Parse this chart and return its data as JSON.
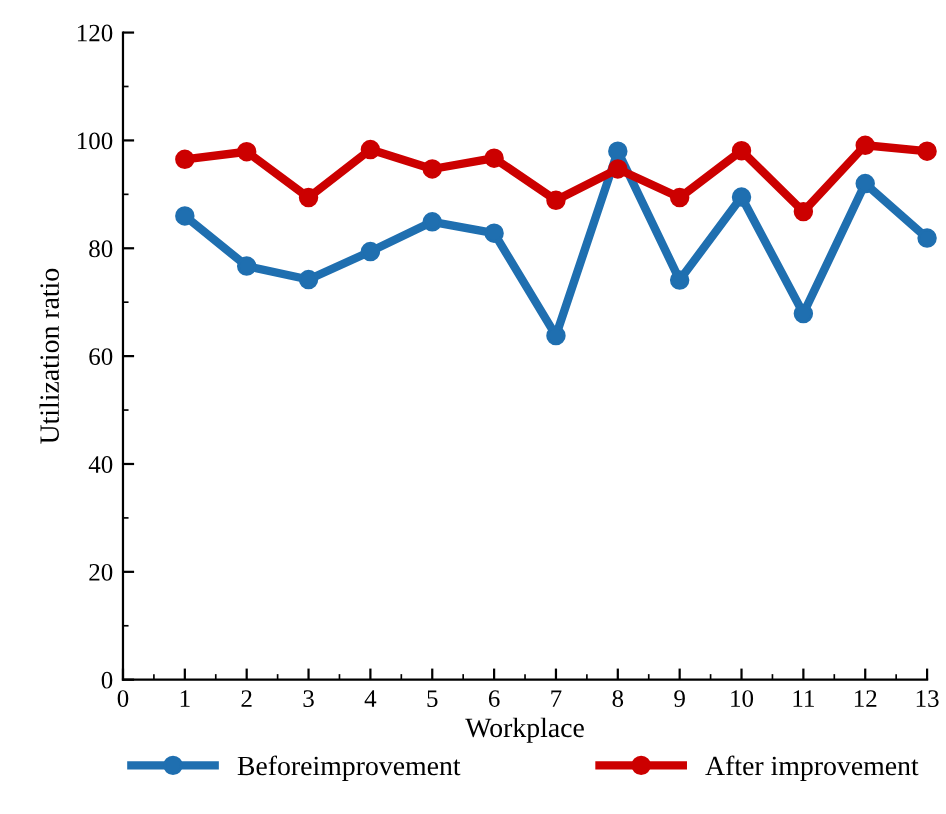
{
  "chart_data": {
    "type": "line",
    "xlabel": "Workplace",
    "ylabel": "Utilization ratio",
    "x": [
      1,
      2,
      3,
      4,
      5,
      6,
      7,
      8,
      9,
      10,
      11,
      12,
      13
    ],
    "series": [
      {
        "name": "Beforeimprovement",
        "color": "#1f6fb0",
        "values": [
          86.0,
          76.7,
          74.2,
          79.4,
          84.9,
          82.8,
          63.8,
          98.0,
          74.1,
          89.5,
          67.9,
          92.0,
          81.9
        ]
      },
      {
        "name": "After improvement",
        "color": "#cc0000",
        "values": [
          96.5,
          97.9,
          89.4,
          98.3,
          94.7,
          96.7,
          88.9,
          94.7,
          89.4,
          98.1,
          86.8,
          99.1,
          98.0
        ]
      }
    ],
    "xlim": [
      0,
      13
    ],
    "xticks": [
      0,
      1,
      2,
      3,
      4,
      5,
      6,
      7,
      8,
      9,
      10,
      11,
      12,
      13
    ],
    "ylim": [
      0,
      120
    ],
    "yticks": [
      0,
      20,
      40,
      60,
      80,
      100,
      120
    ],
    "grid": false,
    "legend": "bottom",
    "marker": "circle",
    "line_style": "solid"
  }
}
